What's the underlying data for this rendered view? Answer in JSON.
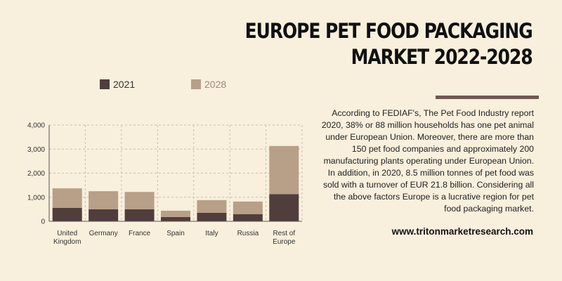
{
  "title": {
    "line1": "EUROPE PET FOOD PACKAGING",
    "line2": "MARKET 2022-2028"
  },
  "description": "According to FEDIAF's, The Pet Food Industry report 2020, 38% or 88 million households has one pet animal under European Union. Moreover, there are more than 150 pet food companies and approximately 200 manufacturing plants operating under European Union.  In addition, in 2020, 8.5 million tonnes of pet food was sold with a turnover of EUR 21.8 billion. Considering all the above factors Europe is a lucrative region for pet food packaging market.",
  "website": "www.tritonmarketresearch.com",
  "colors": {
    "background": "#f8efdc",
    "series_2021": "#4f3e3c",
    "series_2028": "#b89f88",
    "rule": "#6e5a52"
  },
  "chart_data": {
    "type": "bar",
    "stacked": true,
    "categories": [
      [
        "United",
        "Kingdom"
      ],
      [
        "Germany"
      ],
      [
        "France"
      ],
      [
        "Spain"
      ],
      [
        "Italy"
      ],
      [
        "Russia"
      ],
      [
        "Rest of",
        "Europe"
      ]
    ],
    "series": [
      {
        "name": "2021",
        "color": "#4f3e3c",
        "values": [
          560,
          500,
          500,
          180,
          350,
          300,
          1130
        ]
      },
      {
        "name": "2028",
        "color": "#b89f88",
        "values": [
          810,
          750,
          720,
          260,
          530,
          520,
          2000
        ]
      }
    ],
    "y_ticks": [
      "0",
      "1,000",
      "2,000",
      "3,000",
      "4,000"
    ],
    "ylim": [
      0,
      4000
    ],
    "grid": true,
    "legend_position": "top"
  }
}
